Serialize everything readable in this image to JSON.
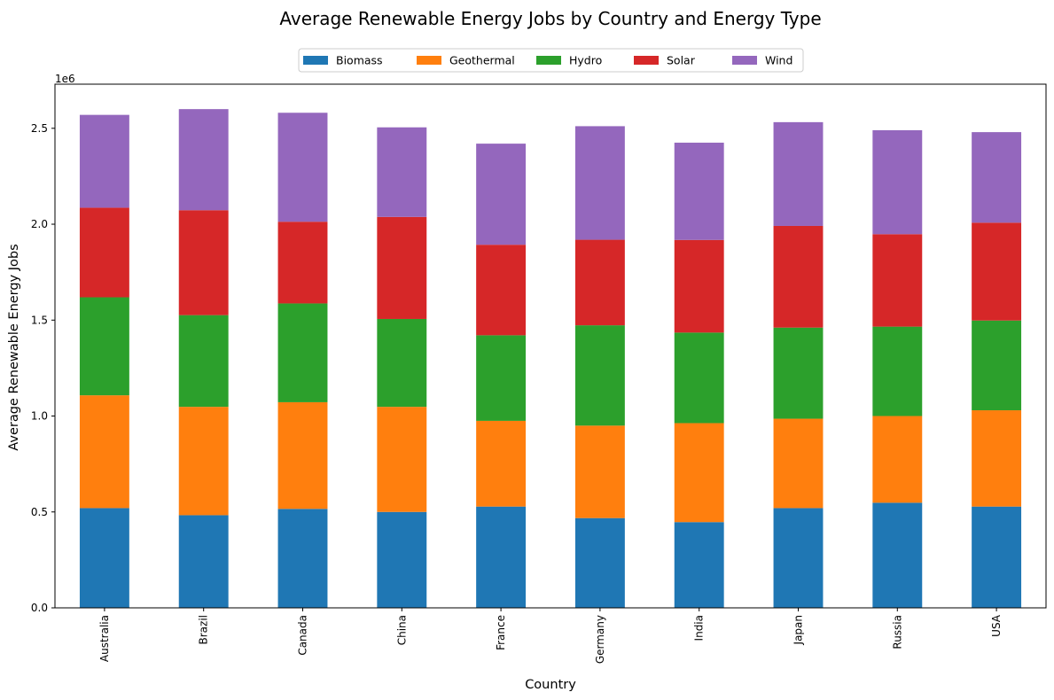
{
  "chart_data": {
    "type": "bar",
    "stacked": true,
    "title": "Average Renewable Energy Jobs by Country and Energy Type",
    "xlabel": "Country",
    "ylabel": "Average Renewable Energy Jobs",
    "y_scale_label": "1e6",
    "ylim": [
      0,
      2730000
    ],
    "yticks": [
      0,
      500000,
      1000000,
      1500000,
      2000000,
      2500000
    ],
    "ytick_labels": [
      "0.0",
      "0.5",
      "1.0",
      "1.5",
      "2.0",
      "2.5"
    ],
    "legend_position": "top-center",
    "grid": false,
    "categories": [
      "Australia",
      "Brazil",
      "Canada",
      "China",
      "France",
      "Germany",
      "India",
      "Japan",
      "Russia",
      "USA"
    ],
    "series": [
      {
        "name": "Biomass",
        "color": "#1f77b4",
        "values": [
          520000,
          483000,
          516000,
          500000,
          528000,
          468000,
          447000,
          520000,
          548000,
          528000
        ]
      },
      {
        "name": "Geothermal",
        "color": "#ff7f0e",
        "values": [
          588000,
          565000,
          556000,
          548000,
          447000,
          482000,
          516000,
          466000,
          452000,
          502000
        ]
      },
      {
        "name": "Hydro",
        "color": "#2ca02c",
        "values": [
          511000,
          478000,
          515000,
          458000,
          446000,
          523000,
          472000,
          475000,
          466000,
          468000
        ]
      },
      {
        "name": "Solar",
        "color": "#d62728",
        "values": [
          467000,
          547000,
          426000,
          532000,
          472000,
          446000,
          483000,
          530000,
          482000,
          510000
        ]
      },
      {
        "name": "Wind",
        "color": "#9467bd",
        "values": [
          484000,
          527000,
          568000,
          467000,
          527000,
          592000,
          507000,
          541000,
          542000,
          472000
        ]
      }
    ]
  }
}
